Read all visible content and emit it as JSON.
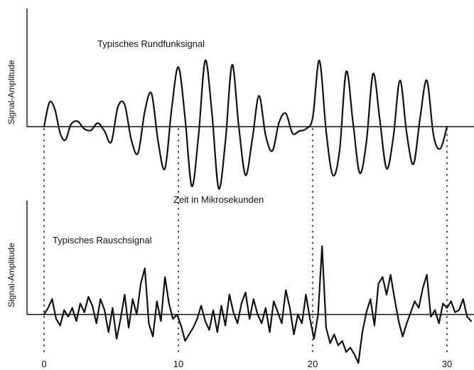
{
  "chart_data": [
    {
      "type": "line",
      "title": "Typisches Rundfunksignal",
      "xlabel": "Zeit in Mikrosekunden",
      "ylabel": "Signal-Amplitude",
      "xlim": [
        0,
        32
      ],
      "ylim": [
        -1.2,
        1.8
      ],
      "grid": false,
      "series": [
        {
          "x": [
            0,
            0.4,
            0.8,
            1.2,
            1.6,
            2.0,
            2.5,
            3.0,
            3.5,
            4.0,
            4.5,
            5.0,
            5.5,
            6.0,
            6.5,
            7.0,
            7.5,
            8.0,
            8.5,
            9.0,
            9.5,
            10.0,
            10.5,
            11.0,
            11.5,
            12.0,
            12.5,
            13.0,
            13.5,
            14.0,
            14.5,
            15.0,
            15.5,
            16.0,
            16.5,
            17.0,
            17.5,
            18.0,
            18.5,
            19.0,
            19.5,
            20.0,
            20.5,
            21.0,
            21.5,
            22.0,
            22.5,
            23.0,
            23.5,
            24.0,
            24.5,
            25.0,
            25.5,
            26.0,
            26.5,
            27.0,
            27.5,
            28.0,
            28.5,
            29.0,
            29.5,
            30.0
          ],
          "y": [
            0.0,
            0.55,
            0.4,
            -0.15,
            -0.3,
            0.05,
            0.12,
            -0.05,
            -0.08,
            0.08,
            -0.1,
            -0.35,
            0.45,
            0.5,
            -0.3,
            -0.6,
            0.35,
            0.75,
            -0.35,
            -0.95,
            0.4,
            1.35,
            0.2,
            -1.35,
            -0.2,
            1.5,
            0.3,
            -1.4,
            -0.35,
            1.4,
            0.0,
            -1.1,
            -0.3,
            0.7,
            -0.2,
            -0.55,
            0.1,
            0.3,
            -0.15,
            -0.1,
            -0.05,
            0.2,
            1.5,
            -0.1,
            -1.1,
            -0.55,
            1.25,
            0.1,
            -1.05,
            -0.35,
            1.2,
            0.15,
            -0.95,
            -0.25,
            1.05,
            -0.15,
            -0.85,
            0.2,
            1.05,
            -0.2,
            -0.5,
            0.0
          ]
        }
      ]
    },
    {
      "type": "line",
      "title": "Typisches Rauschsignal",
      "xlabel": "Zeit in Mikrosekunden",
      "ylabel": "Signal-Amplitude",
      "xlim": [
        0,
        32
      ],
      "ylim": [
        -1.2,
        1.8
      ],
      "x_ticks": [
        "0",
        "10",
        "20",
        "30"
      ],
      "grid": false,
      "series": [
        {
          "x": [
            0,
            0.3,
            0.6,
            0.9,
            1.2,
            1.5,
            1.8,
            2.1,
            2.4,
            2.7,
            3.0,
            3.3,
            3.6,
            3.9,
            4.2,
            4.5,
            4.8,
            5.1,
            5.4,
            5.7,
            6.0,
            6.3,
            6.6,
            6.9,
            7.2,
            7.5,
            7.8,
            8.1,
            8.4,
            8.7,
            9.0,
            9.3,
            9.6,
            9.9,
            10.2,
            10.5,
            10.8,
            11.1,
            11.4,
            11.7,
            12.0,
            12.3,
            12.6,
            12.9,
            13.2,
            13.5,
            13.8,
            14.1,
            14.4,
            14.7,
            15.0,
            15.3,
            15.6,
            15.9,
            16.2,
            16.5,
            16.8,
            17.1,
            17.4,
            17.7,
            18.0,
            18.3,
            18.6,
            18.9,
            19.2,
            19.5,
            19.8,
            20.1,
            20.4,
            20.7,
            21.0,
            21.3,
            21.6,
            21.9,
            22.2,
            22.5,
            22.8,
            23.1,
            23.4,
            23.7,
            24.0,
            24.3,
            24.6,
            24.9,
            25.2,
            25.5,
            25.8,
            26.1,
            26.4,
            26.7,
            27.0,
            27.3,
            27.6,
            27.9,
            28.2,
            28.5,
            28.8,
            29.1,
            29.4,
            29.7,
            30.0,
            30.3,
            30.6,
            30.9,
            31.2,
            31.5,
            31.8
          ],
          "y": [
            0.0,
            0.15,
            0.35,
            -0.1,
            -0.25,
            0.1,
            -0.05,
            0.15,
            -0.15,
            0.25,
            0.05,
            0.4,
            0.2,
            -0.2,
            0.35,
            0.1,
            -0.4,
            0.15,
            -0.55,
            -0.1,
            0.45,
            -0.3,
            0.35,
            0.0,
            0.7,
            1.05,
            -0.2,
            -0.5,
            0.3,
            -0.15,
            0.85,
            0.25,
            -0.1,
            0.0,
            -0.25,
            -0.6,
            -0.45,
            -0.3,
            -0.1,
            0.2,
            -0.15,
            -0.35,
            0.1,
            -0.4,
            0.2,
            -0.25,
            0.45,
            0.05,
            -0.2,
            0.25,
            0.5,
            -0.1,
            0.35,
            0.0,
            -0.2,
            0.15,
            -0.4,
            0.3,
            0.05,
            -0.2,
            0.55,
            0.15,
            -0.45,
            0.0,
            -0.2,
            0.45,
            -0.1,
            -0.55,
            0.0,
            1.55,
            -0.3,
            -0.65,
            -0.45,
            -0.7,
            -0.6,
            -0.85,
            -0.75,
            -0.9,
            -1.1,
            -0.4,
            0.05,
            0.35,
            -0.25,
            0.7,
            0.85,
            0.45,
            0.9,
            0.35,
            -0.15,
            -0.5,
            -0.2,
            0.05,
            0.3,
            0.15,
            0.6,
            0.9,
            -0.05,
            0.1,
            -0.2,
            0.25,
            0.15,
            0.3,
            0.05,
            0.1,
            0.35,
            -0.05,
            -0.15
          ]
        }
      ]
    }
  ]
}
